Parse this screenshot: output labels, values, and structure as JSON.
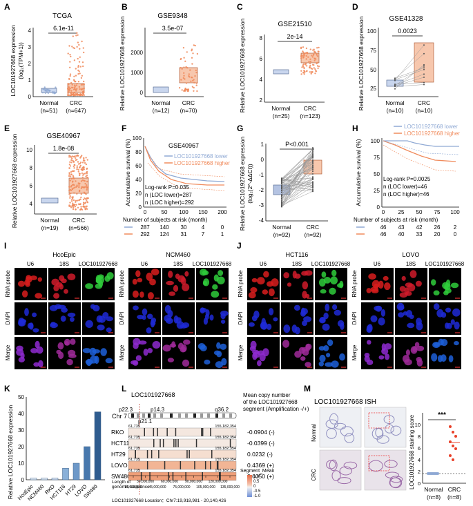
{
  "panels": {
    "A": {
      "letter": "A",
      "title": "TCGA",
      "ylabel": "LOC101927668 expression",
      "ylabel2": "(log₂(TPM+1))",
      "p": "6.1e-11",
      "yticks": [
        "0",
        "1",
        "2",
        "3",
        "4"
      ],
      "groups": [
        "Normal",
        "CRC"
      ],
      "ns": [
        "(n=51)",
        "(n=647)"
      ]
    },
    "B": {
      "letter": "B",
      "title": "GSE9348",
      "ylabel": "Relative LOC101927668 expression",
      "p": "3.5e-07",
      "yticks": [
        "0",
        "1000",
        "2000"
      ],
      "groups": [
        "Normal",
        "CRC"
      ],
      "ns": [
        "(n=12)",
        "(n=70)"
      ]
    },
    "C": {
      "letter": "C",
      "title": "GSE21510",
      "ylabel": "Relative LOC101927668 expression",
      "p": "2e-14",
      "yticks": [
        "2",
        "4",
        "6",
        "8"
      ],
      "groups": [
        "Normal",
        "CRC"
      ],
      "ns": [
        "(n=25)",
        "(n=123)"
      ]
    },
    "D": {
      "letter": "D",
      "title": "GSE41328",
      "ylabel": "Relative LOC101927668 expression",
      "p": "0.0023",
      "yticks": [
        "25",
        "50",
        "75",
        "100"
      ],
      "groups": [
        "Normal",
        "CRC"
      ],
      "ns": [
        "(n=10)",
        "(n=10)"
      ]
    },
    "E": {
      "letter": "E",
      "title": "GSE40967",
      "ylabel": "Relative LOC101927668 expression",
      "p": "1.8e-08",
      "yticks": [
        "4",
        "6",
        "8",
        "10"
      ],
      "groups": [
        "Normal",
        "CRC"
      ],
      "ns": [
        "(n=19)",
        "(n=566)"
      ]
    },
    "F": {
      "letter": "F",
      "title": "GSE40967",
      "ylabel": "Accumulative survival (%)",
      "legend_lower": "LOC101927668 lower",
      "legend_higher": "LOC101927668 higher",
      "logrank": "Log-rank P=0.035",
      "n_lower": "n (LOC lower)=287",
      "n_higher": "n (LOC higher)=292",
      "yticks": [
        "0",
        "20",
        "40",
        "60",
        "80",
        "100"
      ],
      "xticks": [
        "0",
        "50",
        "100",
        "150",
        "200"
      ],
      "risk_title": "Number of subjects at risk (month)",
      "risk_lower": [
        "287",
        "140",
        "30",
        "4",
        "0"
      ],
      "risk_higher": [
        "292",
        "124",
        "31",
        "7",
        "1"
      ]
    },
    "G": {
      "letter": "G",
      "p": "P<0.001",
      "ylabel": "Relative LOC101927668 expression",
      "ylabel2": "(log₂(2^-ΔΔCt))",
      "yticks": [
        "-4",
        "-3",
        "-2",
        "-1",
        "0",
        "1"
      ],
      "groups": [
        "Normal",
        "CRC"
      ],
      "ns": [
        "(n=92)",
        "(n=92)"
      ]
    },
    "H": {
      "letter": "H",
      "ylabel": "Accumulative survival (%)",
      "legend_lower": "LOC101927668 lower",
      "legend_higher": "LOC101927668 higher",
      "logrank": "Log-rank P=0.0025",
      "n_lower": "n (LOC lower)=46",
      "n_higher": "n (LOC higher)=46",
      "yticks": [
        "0",
        "25",
        "50",
        "75",
        "100"
      ],
      "xticks": [
        "0",
        "25",
        "50",
        "75",
        "100"
      ],
      "risk_title": "Number of subjects at risk (month)",
      "risk_lower": [
        "46",
        "43",
        "42",
        "26",
        "2"
      ],
      "risk_higher": [
        "46",
        "40",
        "33",
        "20",
        "0"
      ]
    },
    "I": {
      "letter": "I",
      "left_title": "HcoEpic",
      "right_title": "NCM460",
      "cols": [
        "U6",
        "18S",
        "LOC101927668"
      ],
      "rows": [
        "RNA probe",
        "DAPI",
        "Merge"
      ]
    },
    "J": {
      "letter": "J",
      "left_title": "HCT116",
      "right_title": "LOVO",
      "cols": [
        "U6",
        "18S",
        "LOC101927668"
      ],
      "rows": [
        "RNA probe",
        "DAPI",
        "Merge"
      ]
    },
    "K": {
      "letter": "K",
      "ylabel": "Relative LOC101927668 expression",
      "yticks": [
        "0",
        "10",
        "20",
        "30",
        "40",
        "50"
      ]
    },
    "L": {
      "letter": "L",
      "gene": "LOC101927668",
      "chrom": "Chr 7",
      "band_p22": "p22.3",
      "band_p14": "p14.3",
      "band_p21": "p21.1",
      "band_q36": "q36.2",
      "mean_title1": "Mean copy number",
      "mean_title2": "of the LOC101927668",
      "mean_title3": "segment (Amplification -/+)",
      "start": "61,735",
      "end": "155,182,354",
      "axis_title1": "Length of",
      "axis_title2": "genomic sequence",
      "axis_ticks": [
        "15,000,000",
        "30,000,000",
        "45,000,000",
        "60,000,000",
        "75,000,000",
        "90,000,000",
        "105,000,000",
        "120,000,000",
        "135,000,000"
      ],
      "location": "LOC101927668 Location：Chr7:19,918,981 - 20,140,426",
      "legend_title": "Segment_Mean",
      "legend_vals": [
        "1.0",
        "0.5",
        "0",
        "-0.5",
        "-1.0"
      ]
    },
    "M": {
      "letter": "M",
      "title": "LOC101927668 ISH",
      "row_normal": "Normal",
      "row_crc": "CRC",
      "ylabel": "LOC101927668 staining score",
      "stars": "***",
      "yticks": [
        "0",
        "2",
        "4",
        "6",
        "8",
        "10"
      ],
      "groups": [
        "Normal",
        "CRC"
      ],
      "ns": [
        "(n=8)",
        "(n=8)"
      ]
    }
  },
  "chart_data": [
    {
      "type": "bar",
      "title": "K",
      "categories": [
        "HcoEpic",
        "NCM460",
        "RKO",
        "HCT116",
        "HT29",
        "LOVO",
        "SW480"
      ],
      "values": [
        1,
        1,
        1,
        7,
        10,
        20,
        41
      ],
      "ylabel": "Relative LOC101927668 expression",
      "ylim": [
        0,
        50
      ]
    },
    {
      "type": "table",
      "title": "L",
      "rows": [
        {
          "line": "RKO",
          "value": "-0.0904 (-)"
        },
        {
          "line": "HCT116",
          "value": "-0.0399 (-)"
        },
        {
          "line": "HT29",
          "value": "0.0232 (-)"
        },
        {
          "line": "LOVO",
          "value": "0.4369 (+)"
        },
        {
          "line": "SW480",
          "value": "0.6050 (+)"
        }
      ]
    }
  ],
  "colors": {
    "normal": "#8fa9d4",
    "crc": "#f08a5b",
    "red": "#e8412a",
    "green": "#2fcc3b",
    "blue": "#2530d8",
    "bar": "#2f5c8f"
  }
}
